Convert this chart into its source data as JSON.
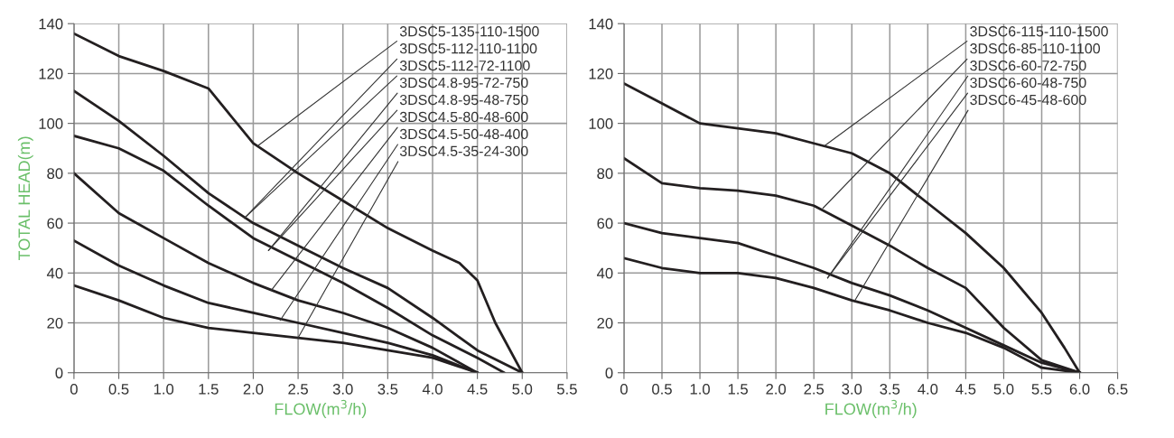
{
  "chart_data": [
    {
      "type": "line",
      "xlabel": "FLOW(m$^{3}$/h)",
      "ylabel": "TOTAL HEAD(m)",
      "xlim": [
        0,
        5.5
      ],
      "ylim": [
        0,
        140
      ],
      "xticks": [
        0,
        0.5,
        {
          "value": 1,
          "label": "1.0"
        },
        1.5,
        {
          "value": 2,
          "label": "2.0"
        },
        2.5,
        {
          "value": 3,
          "label": "3.0"
        },
        3.5,
        {
          "value": 4,
          "label": "4.0"
        },
        4.5,
        {
          "value": 5,
          "label": "5.0"
        },
        5.5
      ],
      "yticks": [
        0,
        20,
        40,
        60,
        80,
        100,
        120,
        140
      ],
      "grid": true,
      "marker": "none",
      "line_style": "solid",
      "series": [
        {
          "color": "#231f20",
          "x": [
            0,
            0.5,
            1.0,
            1.5,
            2.0,
            2.5,
            3.0,
            3.5,
            4.0,
            4.3,
            4.5,
            4.7,
            5.0
          ],
          "values": [
            136,
            127,
            121,
            114,
            92,
            80,
            69,
            58,
            49,
            44,
            37,
            20,
            0
          ]
        },
        {
          "color": "#231f20",
          "x": [
            0,
            0.5,
            1.0,
            1.5,
            2.0,
            2.5,
            3.0,
            3.5,
            4.0,
            4.5,
            5.0
          ],
          "values": [
            113,
            101,
            87,
            72,
            60,
            51,
            42,
            34,
            22,
            9,
            0
          ]
        },
        {
          "color": "#231f20",
          "x": [
            0,
            0.5,
            1.0,
            1.5,
            2.0,
            2.5,
            3.0,
            3.5,
            4.0,
            4.5,
            4.8
          ],
          "values": [
            95,
            90,
            81,
            67,
            54,
            45,
            36,
            26,
            15,
            6,
            0
          ]
        },
        {
          "color": "#231f20",
          "x": [
            0,
            0.5,
            1.0,
            1.5,
            2.0,
            2.5,
            3.0,
            3.5,
            4.0,
            4.5
          ],
          "values": [
            80,
            64,
            54,
            44,
            36,
            29,
            24,
            18,
            10,
            0
          ]
        },
        {
          "color": "#231f20",
          "x": [
            0,
            0.5,
            1.0,
            1.5,
            2.0,
            2.5,
            3.0,
            3.5,
            4.0,
            4.5
          ],
          "values": [
            53,
            43,
            35,
            28,
            24,
            20,
            16,
            12,
            7,
            0
          ]
        },
        {
          "color": "#231f20",
          "x": [
            0,
            0.5,
            1.0,
            1.5,
            2.0,
            2.5,
            3.0,
            3.5,
            4.0,
            4.5
          ],
          "values": [
            35,
            29,
            22,
            18,
            16,
            14,
            12,
            9,
            6,
            0
          ]
        }
      ],
      "annotations": [
        {
          "text": "3DSC5-135-110-1500",
          "x": 2.05,
          "y": 91
        },
        {
          "text": "3DSC5-112-110-1100",
          "x": 1.9,
          "y": 62
        },
        {
          "text": "3DSC5-112-72-1100",
          "x": 1.9,
          "y": 62
        },
        {
          "text": "3DSC4.8-95-72-750",
          "x": 2.17,
          "y": 49
        },
        {
          "text": "3DSC4.8-95-48-750",
          "x": 2.17,
          "y": 49
        },
        {
          "text": "3DSC4.5-80-48-600",
          "x": 2.2,
          "y": 33
        },
        {
          "text": "3DSC4.5-50-48-400",
          "x": 2.3,
          "y": 21
        },
        {
          "text": "3DSC4.5-35-24-300",
          "x": 2.5,
          "y": 14
        }
      ]
    },
    {
      "type": "line",
      "xlabel": "FLOW(m$^{3}$/h)",
      "xlim": [
        0,
        6.5
      ],
      "ylim": [
        0,
        140
      ],
      "xticks": [
        0,
        0.5,
        {
          "value": 1,
          "label": "1.0"
        },
        1.5,
        {
          "value": 2,
          "label": "2.0"
        },
        2.5,
        {
          "value": 3,
          "label": "3.0"
        },
        3.5,
        {
          "value": 4,
          "label": "4.0"
        },
        4.5,
        {
          "value": 5,
          "label": "5.0"
        },
        5.5,
        {
          "value": 6,
          "label": "6.0"
        },
        6.5
      ],
      "yticks": [
        0,
        20,
        40,
        60,
        80,
        100,
        120,
        140
      ],
      "grid": true,
      "marker": "none",
      "line_style": "solid",
      "series": [
        {
          "color": "#231f20",
          "x": [
            0,
            0.5,
            1.0,
            1.5,
            2.0,
            2.5,
            3.0,
            3.5,
            4.0,
            4.5,
            5.0,
            5.5,
            5.8,
            6.0
          ],
          "values": [
            116,
            108,
            100,
            98,
            96,
            92,
            88,
            80,
            68,
            56,
            42,
            24,
            10,
            0
          ]
        },
        {
          "color": "#231f20",
          "x": [
            0,
            0.5,
            1.0,
            1.5,
            2.0,
            2.5,
            3.0,
            3.5,
            4.0,
            4.5,
            5.0,
            5.5,
            6.0
          ],
          "values": [
            86,
            76,
            74,
            73,
            71,
            67,
            59,
            51,
            42,
            34,
            18,
            5,
            0
          ]
        },
        {
          "color": "#231f20",
          "x": [
            0,
            0.5,
            1.0,
            1.5,
            2.0,
            2.5,
            3.0,
            3.5,
            4.0,
            4.5,
            5.0,
            5.5,
            6.0
          ],
          "values": [
            60,
            56,
            54,
            52,
            47,
            42,
            36,
            31,
            25,
            18,
            11,
            4,
            0
          ]
        },
        {
          "color": "#231f20",
          "x": [
            0,
            0.5,
            1.0,
            1.5,
            2.0,
            2.5,
            3.0,
            3.5,
            4.0,
            4.5,
            5.0,
            5.5,
            6.0
          ],
          "values": [
            46,
            42,
            40,
            40,
            38,
            34,
            29,
            25,
            20,
            16,
            10,
            2,
            0
          ]
        }
      ],
      "annotations": [
        {
          "text": "3DSC6-115-110-1500",
          "x": 2.64,
          "y": 91
        },
        {
          "text": "3DSC6-85-110-1100",
          "x": 2.62,
          "y": 66
        },
        {
          "text": "3DSC6-60-72-750",
          "x": 2.68,
          "y": 38
        },
        {
          "text": "3DSC6-60-48-750",
          "x": 2.68,
          "y": 38
        },
        {
          "text": "3DSC6-45-48-600",
          "x": 3.04,
          "y": 29
        }
      ]
    }
  ]
}
